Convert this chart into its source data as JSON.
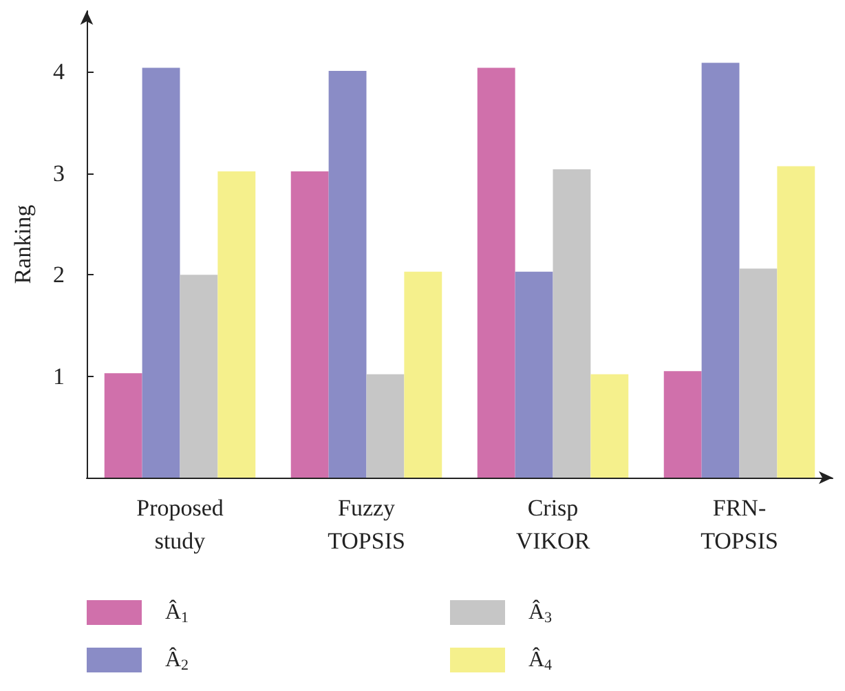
{
  "chart_data": {
    "type": "bar",
    "ylabel": "Ranking",
    "categories": [
      "Proposed study",
      "Fuzzy TOPSIS",
      "Crisp VIKOR",
      "FRN-TOPSIS"
    ],
    "series": [
      {
        "name": "Â$_{1}$",
        "color": "#d070ab",
        "values": [
          1.03,
          3.02,
          4.04,
          1.05
        ]
      },
      {
        "name": "Â$_{2}$",
        "color": "#8a8cc6",
        "values": [
          4.04,
          4.01,
          2.03,
          4.09
        ]
      },
      {
        "name": "Â$_{3}$",
        "color": "#c6c6c6",
        "values": [
          2.0,
          1.02,
          3.04,
          2.06
        ]
      },
      {
        "name": "Â$_{4}$",
        "color": "#f5f08c",
        "values": [
          3.02,
          2.03,
          1.02,
          3.07
        ]
      }
    ],
    "ylim": [
      0,
      4.6
    ],
    "yticks": [
      1,
      2,
      3,
      4
    ],
    "grid": false,
    "legend": "bottom"
  }
}
